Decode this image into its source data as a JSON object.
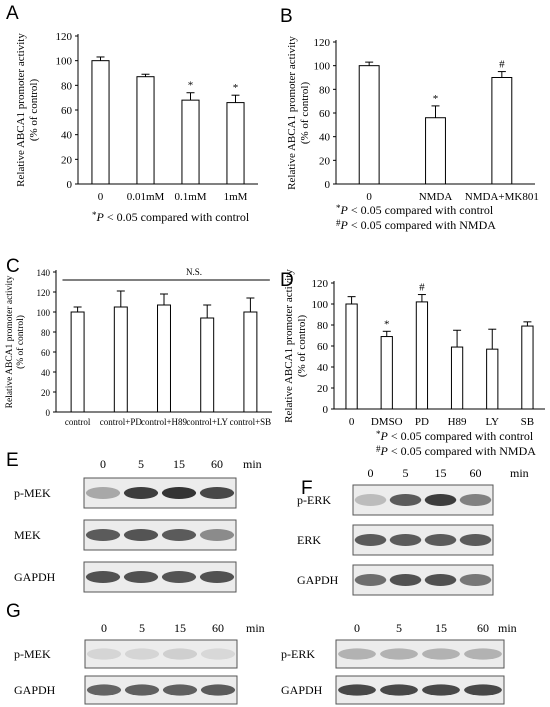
{
  "panel_labels": [
    "A",
    "B",
    "C",
    "D",
    "E",
    "F",
    "G"
  ],
  "chart_data": [
    {
      "panel": "A",
      "type": "bar",
      "title": "",
      "ylabel": [
        "Relative ABCA1 promoter activity",
        "(% of control)"
      ],
      "ylim": [
        0,
        120
      ],
      "yticks": [
        0,
        20,
        40,
        60,
        80,
        100,
        120
      ],
      "categories": [
        "0",
        "0.01mM",
        "0.1mM",
        "1mM"
      ],
      "values": [
        100,
        87,
        68,
        66
      ],
      "errors": [
        3,
        2,
        6,
        6
      ],
      "marks": [
        "",
        "",
        "*",
        "*"
      ],
      "notes": [
        "*P < 0.05 compared with  control"
      ],
      "grid": false
    },
    {
      "panel": "B",
      "type": "bar",
      "title": "",
      "ylabel": [
        "Relative ABCA1 promoter activity",
        "(% of control)"
      ],
      "ylim": [
        0,
        120
      ],
      "yticks": [
        0,
        20,
        40,
        60,
        80,
        100,
        120
      ],
      "categories": [
        "0",
        "NMDA",
        "NMDA+MK801"
      ],
      "values": [
        100,
        56,
        90
      ],
      "errors": [
        3,
        10,
        5
      ],
      "marks": [
        "",
        "*",
        "#"
      ],
      "notes": [
        "*P < 0.05 compared with  control",
        "#P < 0.05 compared with NMDA"
      ],
      "grid": false
    },
    {
      "panel": "C",
      "type": "bar",
      "title": "",
      "ylabel": [
        "Relative ABCA1 promoter activity",
        "(% of control)"
      ],
      "ylim": [
        0,
        140
      ],
      "yticks": [
        0,
        20,
        40,
        60,
        80,
        100,
        120,
        140
      ],
      "categories": [
        "control",
        "control+PD",
        "control+H89",
        "control+LY",
        "control+SB"
      ],
      "values": [
        100,
        105,
        107,
        94,
        100
      ],
      "errors": [
        5,
        16,
        11,
        13,
        14
      ],
      "marks": [
        "",
        "",
        "",
        "",
        ""
      ],
      "bracket_label": "N.S.",
      "notes": [],
      "grid": false
    },
    {
      "panel": "D",
      "type": "bar",
      "title": "",
      "ylabel": [
        "Relative ABCA1 promoter activity",
        "(% of control)"
      ],
      "ylim": [
        0,
        120
      ],
      "yticks": [
        0,
        20,
        40,
        60,
        80,
        100,
        120
      ],
      "categories": [
        "0",
        "DMSO",
        "PD",
        "H89",
        "LY",
        "SB"
      ],
      "values": [
        100,
        69,
        102,
        59,
        57,
        79
      ],
      "errors": [
        7,
        5,
        7,
        16,
        19,
        4
      ],
      "marks": [
        "",
        "*",
        "#",
        "",
        "",
        ""
      ],
      "notes": [
        "*P < 0.05 compared with  control",
        "#P < 0.05 compared with NMDA"
      ],
      "grid": false
    }
  ],
  "blots": {
    "E": {
      "times": [
        "0",
        "5",
        "15",
        "60"
      ],
      "unit": "min",
      "rows": [
        {
          "label": "p-MEK",
          "intensity": [
            0.35,
            0.9,
            0.95,
            0.85
          ]
        },
        {
          "label": "MEK",
          "intensity": [
            0.75,
            0.78,
            0.75,
            0.5
          ]
        },
        {
          "label": "GAPDH",
          "intensity": [
            0.8,
            0.8,
            0.78,
            0.8
          ]
        }
      ]
    },
    "F": {
      "times": [
        "0",
        "5",
        "15",
        "60"
      ],
      "unit": "min",
      "rows": [
        {
          "label": "p-ERK",
          "intensity": [
            0.25,
            0.75,
            0.9,
            0.55
          ]
        },
        {
          "label": "ERK",
          "intensity": [
            0.75,
            0.75,
            0.75,
            0.75
          ]
        },
        {
          "label": "GAPDH",
          "intensity": [
            0.65,
            0.8,
            0.8,
            0.6
          ]
        }
      ]
    },
    "G_left": {
      "times": [
        "0",
        "5",
        "15",
        "60"
      ],
      "unit": "min",
      "rows": [
        {
          "label": "p-MEK",
          "intensity": [
            0.12,
            0.12,
            0.15,
            0.1
          ]
        },
        {
          "label": "GAPDH",
          "intensity": [
            0.7,
            0.72,
            0.72,
            0.75
          ]
        }
      ]
    },
    "G_right": {
      "times": [
        "0",
        "5",
        "15",
        "60"
      ],
      "unit": "min",
      "rows": [
        {
          "label": "p-ERK",
          "intensity": [
            0.3,
            0.3,
            0.3,
            0.3
          ]
        },
        {
          "label": "GAPDH",
          "intensity": [
            0.85,
            0.85,
            0.85,
            0.85
          ]
        }
      ]
    }
  }
}
